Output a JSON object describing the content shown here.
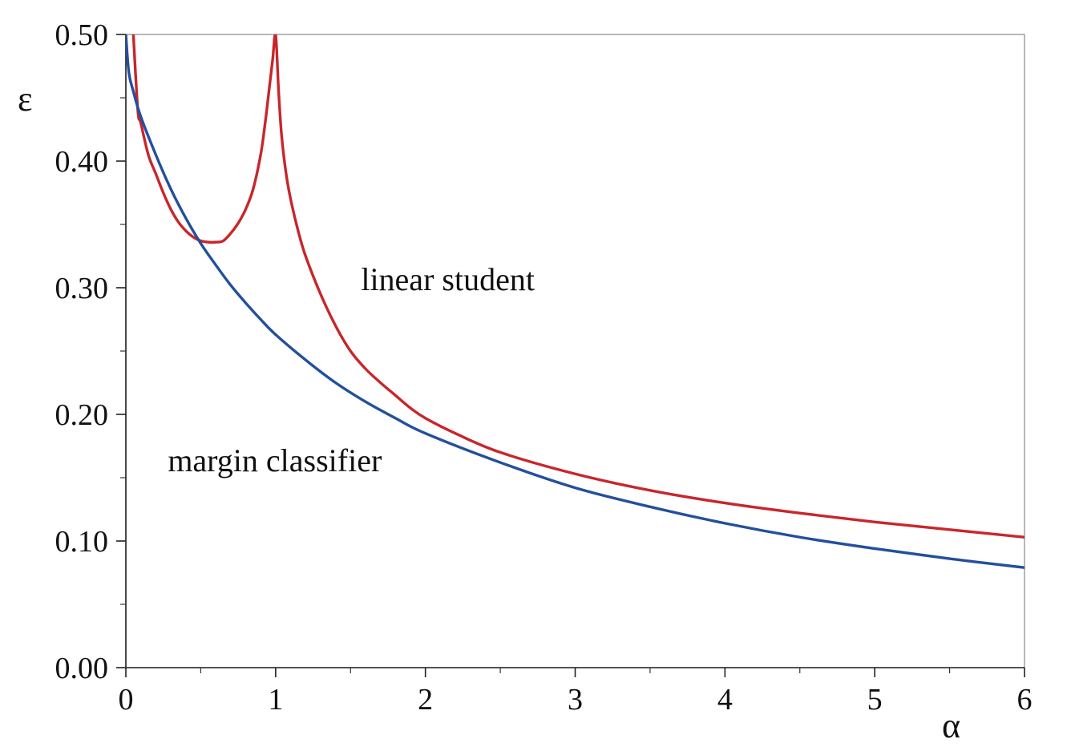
{
  "chart_data": {
    "type": "line",
    "title": "",
    "xlabel": "α",
    "ylabel": "ε",
    "xlim": [
      0,
      6
    ],
    "ylim": [
      0,
      0.5
    ],
    "x_ticks": [
      0,
      1,
      2,
      3,
      4,
      5,
      6
    ],
    "x_tick_labels": [
      "0",
      "1",
      "2",
      "3",
      "4",
      "5",
      "6"
    ],
    "x_minor_step": 0.5,
    "y_ticks": [
      0,
      0.1,
      0.2,
      0.3,
      0.4,
      0.5
    ],
    "y_tick_labels": [
      "0.00",
      "0.10",
      "0.20",
      "0.30",
      "0.40",
      "0.50"
    ],
    "y_minor_step": 0.05,
    "grid": false,
    "legend": "none",
    "series": [
      {
        "name": "linear student",
        "color": "#c8262b",
        "x": [
          0.05,
          0.08,
          0.1,
          0.15,
          0.2,
          0.25,
          0.3,
          0.35,
          0.4,
          0.45,
          0.5,
          0.55,
          0.6,
          0.65,
          0.7,
          0.75,
          0.8,
          0.85,
          0.9,
          0.93,
          0.96,
          0.98,
          1.0,
          1.02,
          1.04,
          1.07,
          1.1,
          1.15,
          1.2,
          1.3,
          1.4,
          1.5,
          1.6,
          1.7,
          1.8,
          1.9,
          2.0,
          2.2,
          2.5,
          3.0,
          3.5,
          4.0,
          4.5,
          5.0,
          5.5,
          6.0
        ],
        "y": [
          0.5,
          0.44,
          0.43,
          0.405,
          0.39,
          0.375,
          0.362,
          0.352,
          0.345,
          0.34,
          0.337,
          0.336,
          0.336,
          0.337,
          0.343,
          0.351,
          0.362,
          0.378,
          0.405,
          0.43,
          0.46,
          0.48,
          0.5,
          0.455,
          0.42,
          0.39,
          0.37,
          0.345,
          0.325,
          0.295,
          0.27,
          0.25,
          0.236,
          0.225,
          0.215,
          0.205,
          0.197,
          0.185,
          0.17,
          0.153,
          0.14,
          0.13,
          0.122,
          0.115,
          0.109,
          0.103
        ]
      },
      {
        "name": "margin classifier",
        "color": "#234f9c",
        "x": [
          0.0,
          0.02,
          0.05,
          0.1,
          0.2,
          0.3,
          0.4,
          0.5,
          0.6,
          0.7,
          0.8,
          0.9,
          1.0,
          1.2,
          1.4,
          1.6,
          1.8,
          2.0,
          2.5,
          3.0,
          3.5,
          4.0,
          4.5,
          5.0,
          5.5,
          6.0
        ],
        "y": [
          0.5,
          0.47,
          0.455,
          0.435,
          0.405,
          0.378,
          0.355,
          0.335,
          0.318,
          0.302,
          0.288,
          0.275,
          0.263,
          0.243,
          0.225,
          0.21,
          0.197,
          0.185,
          0.162,
          0.142,
          0.127,
          0.114,
          0.103,
          0.094,
          0.086,
          0.079
        ]
      }
    ],
    "annotations": [
      {
        "text": "linear student",
        "x": 1.57,
        "y": 0.298
      },
      {
        "text": "margin classifier",
        "x": 0.28,
        "y": 0.155
      }
    ]
  }
}
